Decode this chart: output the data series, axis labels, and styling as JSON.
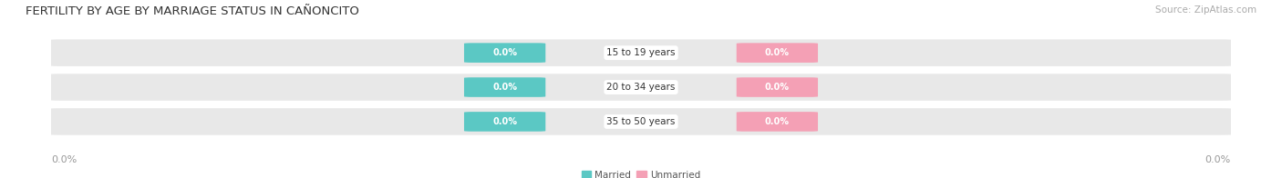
{
  "title": "FERTILITY BY AGE BY MARRIAGE STATUS IN CAÑONCITO",
  "source": "Source: ZipAtlas.com",
  "categories": [
    "15 to 19 years",
    "20 to 34 years",
    "35 to 50 years"
  ],
  "married_values": [
    0.0,
    0.0,
    0.0
  ],
  "unmarried_values": [
    0.0,
    0.0,
    0.0
  ],
  "married_color": "#5bc8c4",
  "unmarried_color": "#f4a0b5",
  "bar_bg_color": "#e8e8e8",
  "bar_height": 0.72,
  "title_fontsize": 9.5,
  "source_fontsize": 7.5,
  "label_fontsize": 7.5,
  "badge_fontsize": 7,
  "tick_fontsize": 8,
  "legend_married": "Married",
  "legend_unmarried": "Unmarried",
  "bg_color": "#ffffff"
}
